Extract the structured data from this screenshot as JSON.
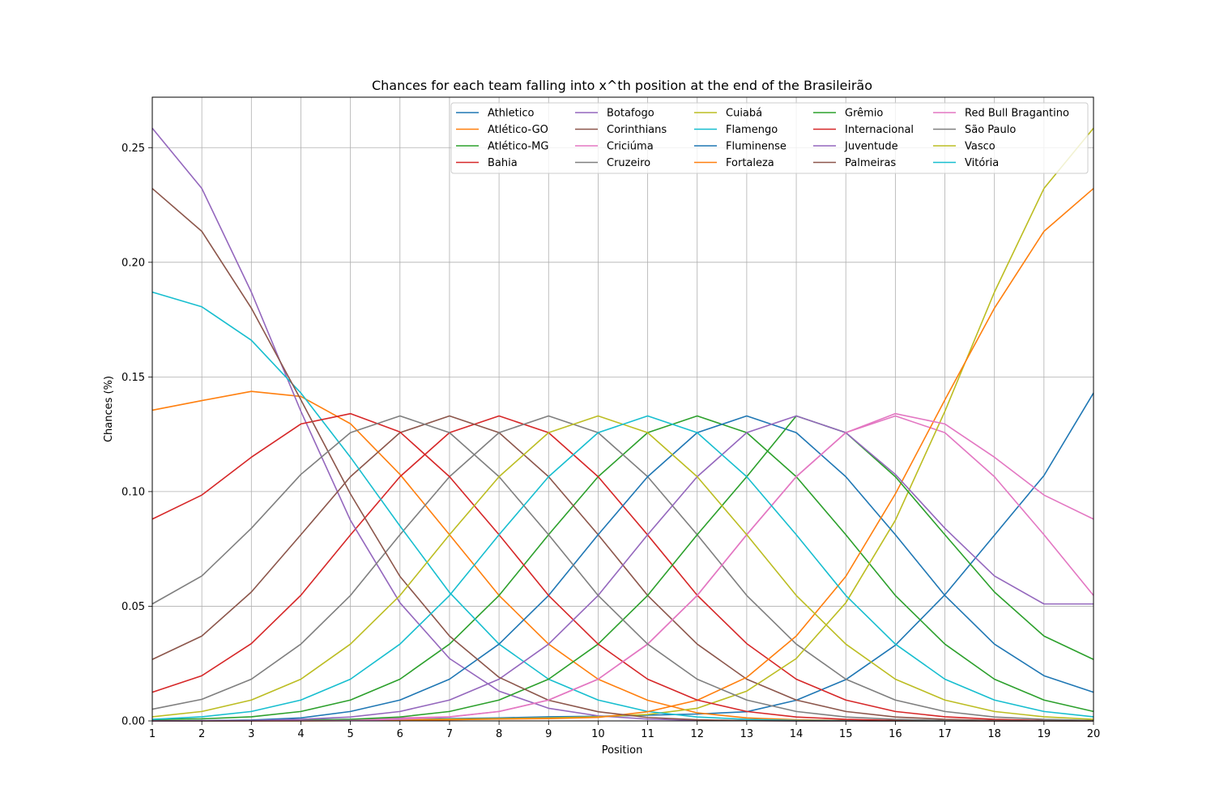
{
  "chart_data": {
    "type": "line",
    "title": "Chances for each team falling into x^th position at the end of the Brasileirão",
    "xlabel": "Position",
    "ylabel": "Chances (%)",
    "x": [
      1,
      2,
      3,
      4,
      5,
      6,
      7,
      8,
      9,
      10,
      11,
      12,
      13,
      14,
      15,
      16,
      17,
      18,
      19,
      20
    ],
    "xlim": [
      1,
      20
    ],
    "ylim": [
      0,
      0.272
    ],
    "yticks": [
      0.0,
      0.05,
      0.1,
      0.15,
      0.2,
      0.25
    ],
    "ytick_labels": [
      "0.00",
      "0.05",
      "0.10",
      "0.15",
      "0.20",
      "0.25"
    ],
    "xtick_labels": [
      "1",
      "2",
      "3",
      "4",
      "5",
      "6",
      "7",
      "8",
      "9",
      "10",
      "11",
      "12",
      "13",
      "14",
      "15",
      "16",
      "17",
      "18",
      "19",
      "20"
    ],
    "grid": true,
    "legend_position": "top-right",
    "series": [
      {
        "name": "Athletico",
        "color": "#1f77b4",
        "values": [
          0.0,
          0.0,
          0.0002,
          0.0004,
          0.0007,
          0.0008,
          0.001,
          0.0013,
          0.0018,
          0.002,
          0.0025,
          0.003,
          0.004,
          0.009,
          0.018,
          0.033,
          0.055,
          0.081,
          0.107,
          0.143
        ]
      },
      {
        "name": "Atlético-GO",
        "color": "#ff7f0e",
        "values": [
          0.1355,
          0.1397,
          0.1437,
          0.1415,
          0.1296,
          0.1075,
          0.0812,
          0.0547,
          0.0335,
          0.0182,
          0.009,
          0.0035,
          0.0013,
          0.0005,
          0.0002,
          0.0,
          0.0,
          0.0,
          0.0,
          0.0
        ]
      },
      {
        "name": "Atlético-MG",
        "color": "#2ca02c",
        "values": [
          0.0006,
          0.0009,
          0.0018,
          0.0041,
          0.0091,
          0.0182,
          0.0335,
          0.0547,
          0.0812,
          0.1065,
          0.1257,
          0.133,
          0.1257,
          0.1065,
          0.0812,
          0.0547,
          0.0335,
          0.0182,
          0.0091,
          0.0041
        ]
      },
      {
        "name": "Bahia",
        "color": "#d62728",
        "values": [
          0.0125,
          0.0197,
          0.0337,
          0.0548,
          0.0811,
          0.1065,
          0.1257,
          0.133,
          0.1257,
          0.1065,
          0.0811,
          0.0548,
          0.0337,
          0.0182,
          0.0091,
          0.0041,
          0.0018,
          0.0007,
          0.0002,
          0.0
        ]
      },
      {
        "name": "Botafogo",
        "color": "#9467bd",
        "values": [
          0.2585,
          0.2322,
          0.187,
          0.135,
          0.0875,
          0.0515,
          0.0272,
          0.013,
          0.0055,
          0.0022,
          0.0008,
          0.0003,
          0.0001,
          0.0,
          0.0,
          0.0,
          0.0,
          0.0,
          0.0,
          0.0
        ]
      },
      {
        "name": "Corinthians",
        "color": "#8c564b",
        "values": [
          0.0268,
          0.037,
          0.0562,
          0.0812,
          0.1065,
          0.1257,
          0.133,
          0.1257,
          0.1065,
          0.0812,
          0.0547,
          0.0335,
          0.0182,
          0.0091,
          0.0041,
          0.0017,
          0.0007,
          0.0002,
          0.0001,
          0.0
        ]
      },
      {
        "name": "Criciúma",
        "color": "#e377c2",
        "values": [
          0.0,
          0.0,
          0.0001,
          0.0002,
          0.0005,
          0.0013,
          0.0018,
          0.0041,
          0.0091,
          0.0182,
          0.0335,
          0.0547,
          0.0812,
          0.1065,
          0.1257,
          0.133,
          0.1257,
          0.1065,
          0.0812,
          0.0547
        ]
      },
      {
        "name": "Cruzeiro",
        "color": "#7f7f7f",
        "values": [
          0.0051,
          0.0094,
          0.0182,
          0.0335,
          0.0547,
          0.0812,
          0.1065,
          0.1257,
          0.133,
          0.1257,
          0.1065,
          0.0812,
          0.0547,
          0.0335,
          0.0182,
          0.0091,
          0.0041,
          0.0017,
          0.0007,
          0.0002
        ]
      },
      {
        "name": "Cuiabá",
        "color": "#bcbd22",
        "values": [
          0.0,
          0.0,
          0.0,
          0.0001,
          0.0002,
          0.0005,
          0.0008,
          0.001,
          0.0013,
          0.0018,
          0.0028,
          0.0055,
          0.013,
          0.0272,
          0.0515,
          0.0875,
          0.135,
          0.187,
          0.2322,
          0.2585
        ]
      },
      {
        "name": "Flamengo",
        "color": "#17becf",
        "values": [
          0.187,
          0.1806,
          0.166,
          0.143,
          0.115,
          0.085,
          0.056,
          0.0335,
          0.0182,
          0.0091,
          0.0041,
          0.0017,
          0.0007,
          0.0002,
          0.0001,
          0.0,
          0.0,
          0.0,
          0.0,
          0.0
        ]
      },
      {
        "name": "Fluminense",
        "color": "#1f77b4",
        "values": [
          0.0,
          0.0001,
          0.0004,
          0.0013,
          0.0041,
          0.0091,
          0.0182,
          0.0335,
          0.0547,
          0.0812,
          0.1065,
          0.1257,
          0.133,
          0.1257,
          0.1065,
          0.0812,
          0.0547,
          0.0335,
          0.0197,
          0.0125
        ]
      },
      {
        "name": "Fortaleza",
        "color": "#ff7f0e",
        "values": [
          0.0,
          0.0,
          0.0,
          0.0,
          0.0001,
          0.0002,
          0.0005,
          0.0008,
          0.001,
          0.0015,
          0.004,
          0.009,
          0.019,
          0.037,
          0.063,
          0.099,
          0.14,
          0.18,
          0.2135,
          0.2322
        ]
      },
      {
        "name": "Grêmio",
        "color": "#2ca02c",
        "values": [
          0.0,
          0.0,
          0.0001,
          0.0003,
          0.0007,
          0.0017,
          0.0041,
          0.0091,
          0.0182,
          0.0335,
          0.0547,
          0.0812,
          0.1065,
          0.133,
          0.1257,
          0.1065,
          0.0812,
          0.0562,
          0.037,
          0.0268
        ]
      },
      {
        "name": "Internacional",
        "color": "#d62728",
        "values": [
          0.088,
          0.0985,
          0.115,
          0.1295,
          0.134,
          0.126,
          0.1065,
          0.0812,
          0.0547,
          0.0335,
          0.0182,
          0.0091,
          0.0041,
          0.0017,
          0.0007,
          0.0002,
          0.0001,
          0.0,
          0.0,
          0.0
        ]
      },
      {
        "name": "Juventude",
        "color": "#9467bd",
        "values": [
          0.0,
          0.0001,
          0.0002,
          0.0007,
          0.0017,
          0.0041,
          0.0091,
          0.0182,
          0.0335,
          0.0547,
          0.0812,
          0.1065,
          0.1257,
          0.133,
          0.1257,
          0.1075,
          0.084,
          0.0632,
          0.051,
          0.051
        ]
      },
      {
        "name": "Palmeiras",
        "color": "#8c564b",
        "values": [
          0.2322,
          0.2135,
          0.18,
          0.14,
          0.099,
          0.063,
          0.037,
          0.019,
          0.009,
          0.004,
          0.0015,
          0.0005,
          0.0001,
          0.0,
          0.0,
          0.0,
          0.0,
          0.0,
          0.0,
          0.0
        ]
      },
      {
        "name": "Red Bull Bragantino",
        "color": "#e377c2",
        "values": [
          0.0,
          0.0,
          0.0,
          0.0001,
          0.0002,
          0.0007,
          0.0017,
          0.0041,
          0.0091,
          0.0182,
          0.0335,
          0.0547,
          0.0812,
          0.1065,
          0.1257,
          0.134,
          0.1295,
          0.115,
          0.0985,
          0.088
        ]
      },
      {
        "name": "São Paulo",
        "color": "#7f7f7f",
        "values": [
          0.051,
          0.0632,
          0.084,
          0.1075,
          0.1257,
          0.133,
          0.1257,
          0.1065,
          0.0812,
          0.0547,
          0.0335,
          0.0182,
          0.0091,
          0.0041,
          0.0017,
          0.0007,
          0.0002,
          0.0001,
          0.0,
          0.0
        ]
      },
      {
        "name": "Vasco",
        "color": "#bcbd22",
        "values": [
          0.0018,
          0.0041,
          0.0091,
          0.0182,
          0.0335,
          0.0547,
          0.0812,
          0.1065,
          0.1257,
          0.133,
          0.1257,
          0.1065,
          0.0812,
          0.0547,
          0.0335,
          0.0182,
          0.0091,
          0.0041,
          0.0018,
          0.0007
        ]
      },
      {
        "name": "Vitória",
        "color": "#17becf",
        "values": [
          0.0007,
          0.0018,
          0.0041,
          0.0091,
          0.0182,
          0.0335,
          0.0547,
          0.0812,
          0.1065,
          0.1257,
          0.133,
          0.1257,
          0.1065,
          0.0812,
          0.0547,
          0.0335,
          0.0182,
          0.0091,
          0.0041,
          0.0018
        ]
      }
    ]
  }
}
